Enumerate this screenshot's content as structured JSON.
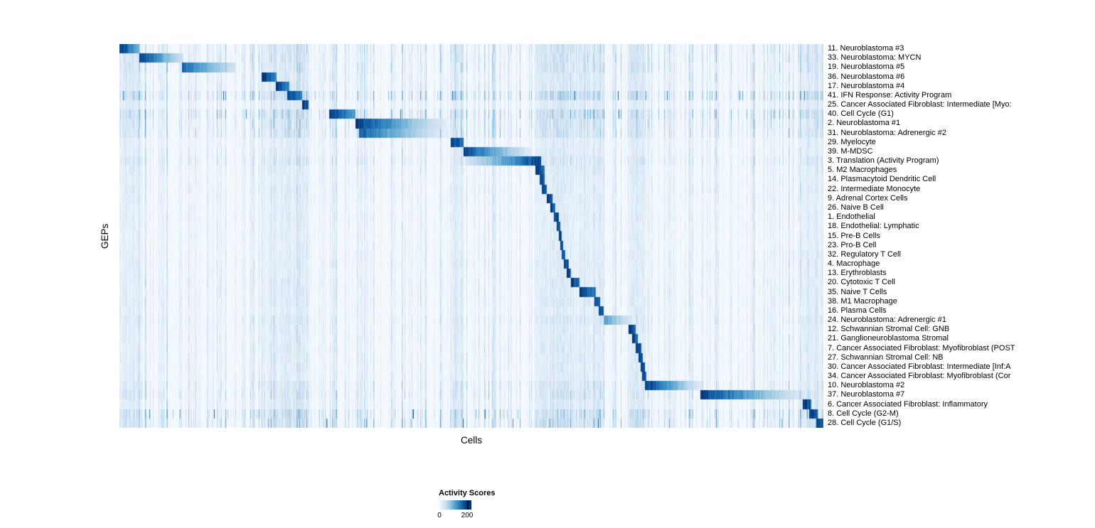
{
  "chart_data": {
    "type": "heatmap",
    "title": "",
    "xlabel": "Cells",
    "ylabel": "GEPs",
    "legend_title": "Activity Scores",
    "value_range": [
      0,
      200
    ],
    "value_ticks": [
      "0",
      "200"
    ],
    "colormap": "Blues",
    "colormap_low": "#F7FBFF",
    "colormap_high": "#08306B",
    "grid": false,
    "legend_position": "bottom",
    "rows": [
      {
        "label": "11. Neuroblastoma #3",
        "block": [
          0.0,
          0.028
        ],
        "peak": 1.0,
        "fade": 0.55,
        "noise": 0.9
      },
      {
        "label": "33. Neuroblastoma: MYCN",
        "block": [
          0.028,
          0.09
        ],
        "peak": 1.0,
        "fade": 0.8,
        "noise": 0.9
      },
      {
        "label": "19. Neuroblastoma #5",
        "block": [
          0.088,
          0.165
        ],
        "peak": 0.85,
        "fade": 0.8,
        "noise": 0.9
      },
      {
        "label": "36. Neuroblastoma #6",
        "block": [
          0.202,
          0.223
        ],
        "peak": 1.0,
        "fade": 0.35,
        "noise": 0.75
      },
      {
        "label": "17. Neuroblastoma #4",
        "block": [
          0.222,
          0.241
        ],
        "peak": 1.0,
        "fade": 0.35,
        "noise": 0.75
      },
      {
        "label": "41. IFN Response: Activity Program",
        "block": [
          0.238,
          0.259
        ],
        "peak": 1.0,
        "fade": 0.3,
        "noise": 1.3,
        "scatter": 0.012
      },
      {
        "label": "25. Cancer Associated Fibroblast: Intermediate [Myo:",
        "block": [
          0.259,
          0.268
        ],
        "peak": 1.0,
        "fade": 0.2,
        "noise": 0.65
      },
      {
        "label": "40. Cell Cycle (G1)",
        "block": [
          0.297,
          0.335
        ],
        "peak": 1.0,
        "fade": 0.45,
        "noise": 1.25,
        "scatter": 0.012
      },
      {
        "label": "2. Neuroblastoma #1",
        "block": [
          0.335,
          0.468
        ],
        "peak": 1.0,
        "fade": 0.92,
        "noise": 1.0
      },
      {
        "label": "31. Neuroblastoma: Adrenergic #2",
        "block": [
          0.34,
          0.468
        ],
        "peak": 0.85,
        "fade": 0.92,
        "noise": 1.0
      },
      {
        "label": "29. Myelocyte",
        "block": [
          0.47,
          0.488
        ],
        "peak": 1.0,
        "fade": 0.25,
        "noise": 0.55
      },
      {
        "label": "39. M-MDSC",
        "block": [
          0.488,
          0.584
        ],
        "peak": 0.95,
        "fade": 0.88,
        "noise": 0.6
      },
      {
        "label": "3. Translation (Activity Program)",
        "block": [
          0.49,
          0.598
        ],
        "peak": 1.0,
        "fade": -0.85,
        "noise": 0.8
      },
      {
        "label": "5. M2 Macrophages",
        "block": [
          0.59,
          0.604
        ],
        "peak": 1.0,
        "fade": 0.25,
        "noise": 0.6
      },
      {
        "label": "14. Plasmacytoid Dendritic Cell",
        "block": [
          0.596,
          0.604
        ],
        "peak": 1.0,
        "fade": 0.2,
        "noise": 0.55
      },
      {
        "label": "22. Intermediate Monocyte",
        "block": [
          0.599,
          0.607
        ],
        "peak": 1.0,
        "fade": 0.2,
        "noise": 0.6
      },
      {
        "label": "9. Adrenal Cortex Cells",
        "block": [
          0.607,
          0.615
        ],
        "peak": 1.0,
        "fade": 0.2,
        "noise": 0.55
      },
      {
        "label": "26. Naive B Cell",
        "block": [
          0.612,
          0.619
        ],
        "peak": 1.0,
        "fade": 0.2,
        "noise": 0.5
      },
      {
        "label": "1. Endothelial",
        "block": [
          0.617,
          0.624
        ],
        "peak": 1.0,
        "fade": 0.2,
        "noise": 0.55
      },
      {
        "label": "18. Endothelial: Lymphatic",
        "block": [
          0.621,
          0.626
        ],
        "peak": 1.0,
        "fade": 0.2,
        "noise": 0.5
      },
      {
        "label": "15. Pre-B Cells",
        "block": [
          0.624,
          0.628
        ],
        "peak": 1.0,
        "fade": 0.15,
        "noise": 0.5
      },
      {
        "label": "23. Pro-B Cell",
        "block": [
          0.626,
          0.63
        ],
        "peak": 1.0,
        "fade": 0.15,
        "noise": 0.5
      },
      {
        "label": "32. Regulatory T Cell",
        "block": [
          0.628,
          0.633
        ],
        "peak": 1.0,
        "fade": 0.15,
        "noise": 0.55
      },
      {
        "label": "4. Macrophage",
        "block": [
          0.631,
          0.638
        ],
        "peak": 1.0,
        "fade": 0.2,
        "noise": 0.6
      },
      {
        "label": "13. Erythroblasts",
        "block": [
          0.635,
          0.641
        ],
        "peak": 1.0,
        "fade": 0.2,
        "noise": 0.55
      },
      {
        "label": "20. Cytotoxic T Cell",
        "block": [
          0.641,
          0.653
        ],
        "peak": 1.0,
        "fade": 0.25,
        "noise": 0.6
      },
      {
        "label": "35. Naive T Cells",
        "block": [
          0.653,
          0.676
        ],
        "peak": 1.0,
        "fade": 0.3,
        "noise": 0.6
      },
      {
        "label": "38. M1 Macrophage",
        "block": [
          0.674,
          0.682
        ],
        "peak": 1.0,
        "fade": 0.2,
        "noise": 0.6
      },
      {
        "label": "16. Plasma Cells",
        "block": [
          0.68,
          0.687
        ],
        "peak": 1.0,
        "fade": 0.2,
        "noise": 0.55
      },
      {
        "label": "24. Neuroblastoma: Adrenergic #1",
        "block": [
          0.687,
          0.726
        ],
        "peak": 0.6,
        "fade": 0.75,
        "noise": 0.7
      },
      {
        "label": "12. Schwannian Stromal Cell: GNB",
        "block": [
          0.723,
          0.733
        ],
        "peak": 1.0,
        "fade": 0.25,
        "noise": 0.6
      },
      {
        "label": "21. Ganglioneuroblastoma Stromal",
        "block": [
          0.728,
          0.736
        ],
        "peak": 1.0,
        "fade": 0.2,
        "noise": 0.6
      },
      {
        "label": "7. Cancer Associated Fibroblast: Myofibroblast (POST",
        "block": [
          0.733,
          0.741
        ],
        "peak": 1.0,
        "fade": 0.2,
        "noise": 0.6
      },
      {
        "label": "27. Schwannian Stromal Cell: NB",
        "block": [
          0.737,
          0.743
        ],
        "peak": 1.0,
        "fade": 0.15,
        "noise": 0.6
      },
      {
        "label": "30. Cancer Associated Fibroblast: Intermediate [Inf:A",
        "block": [
          0.74,
          0.746
        ],
        "peak": 1.0,
        "fade": 0.15,
        "noise": 0.6
      },
      {
        "label": "34. Cancer Associated Fibroblast: Myofibroblast (Cor",
        "block": [
          0.742,
          0.748
        ],
        "peak": 1.0,
        "fade": 0.15,
        "noise": 0.6
      },
      {
        "label": "10. Neuroblastoma #2",
        "block": [
          0.746,
          0.828
        ],
        "peak": 1.0,
        "fade": 0.9,
        "noise": 0.8
      },
      {
        "label": "37. Neuroblastoma #7",
        "block": [
          0.825,
          0.974
        ],
        "peak": 1.0,
        "fade": 0.9,
        "noise": 0.9
      },
      {
        "label": "6. Cancer Associated Fibroblast: Inflammatory",
        "block": [
          0.97,
          0.982
        ],
        "peak": 1.0,
        "fade": 0.2,
        "noise": 0.7
      },
      {
        "label": "8. Cell Cycle (G2-M)",
        "block": [
          0.979,
          0.991
        ],
        "peak": 1.0,
        "fade": 0.2,
        "noise": 1.2,
        "scatter": 0.012
      },
      {
        "label": "28. Cell Cycle (G1/S)",
        "block": [
          0.989,
          1.0
        ],
        "peak": 1.0,
        "fade": 0.2,
        "noise": 1.1,
        "scatter": 0.01
      }
    ]
  }
}
